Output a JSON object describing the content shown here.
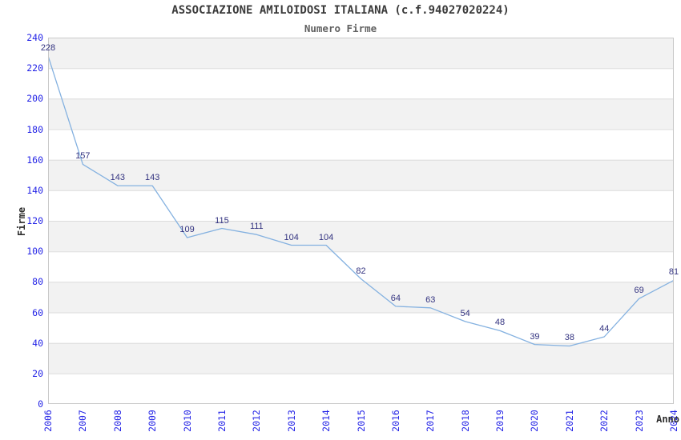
{
  "chart_data": {
    "type": "line",
    "title": "ASSOCIAZIONE AMILOIDOSI ITALIANA (c.f.94027020224)",
    "subtitle": "Numero Firme",
    "xlabel": "Anno",
    "ylabel": "Firme",
    "x": [
      2006,
      2007,
      2008,
      2009,
      2010,
      2011,
      2012,
      2013,
      2014,
      2015,
      2016,
      2017,
      2018,
      2019,
      2020,
      2021,
      2022,
      2023,
      2024
    ],
    "values": [
      228,
      157,
      143,
      143,
      109,
      115,
      111,
      104,
      104,
      82,
      64,
      63,
      54,
      48,
      39,
      38,
      44,
      69,
      81
    ],
    "ylim": [
      0,
      240
    ],
    "ytick_step": 20,
    "grid": true,
    "legend": "none",
    "band_pattern": "alternating gray/white horizontal bands of 20 units, gray topmost",
    "colors": {
      "line": "#84b1e0",
      "band_gray": "#f2f2f2",
      "gridline": "#dcdcdc",
      "plot_border": "#c9c9c9",
      "tick_label": "#2323e6",
      "data_label": "#333380",
      "title": "#3a3a3a",
      "subtitle": "#616161",
      "axis_title": "#2e2e2e",
      "background": "#ffffff"
    }
  }
}
